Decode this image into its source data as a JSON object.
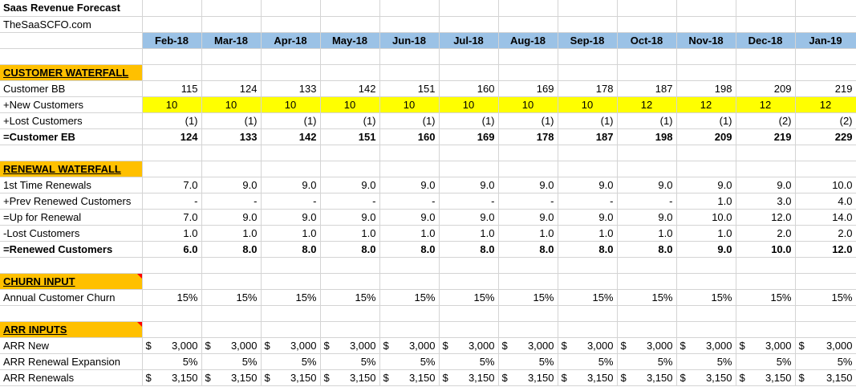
{
  "sheet": {
    "title": "Saas Revenue Forecast",
    "subtitle": "TheSaaSCFO.com",
    "months": [
      "Feb-18",
      "Mar-18",
      "Apr-18",
      "May-18",
      "Jun-18",
      "Jul-18",
      "Aug-18",
      "Sep-18",
      "Oct-18",
      "Nov-18",
      "Dec-18",
      "Jan-19"
    ]
  },
  "customer_waterfall": {
    "header": "CUSTOMER WATERFALL",
    "rows": [
      {
        "label": "Customer BB",
        "values": [
          "115",
          "124",
          "133",
          "142",
          "151",
          "160",
          "169",
          "178",
          "187",
          "198",
          "209",
          "219"
        ]
      },
      {
        "label": "+New Customers",
        "values": [
          "10",
          "10",
          "10",
          "10",
          "10",
          "10",
          "10",
          "10",
          "12",
          "12",
          "12",
          "12"
        ]
      },
      {
        "label": "+Lost Customers",
        "values": [
          "(1)",
          "(1)",
          "(1)",
          "(1)",
          "(1)",
          "(1)",
          "(1)",
          "(1)",
          "(1)",
          "(1)",
          "(2)",
          "(2)"
        ]
      },
      {
        "label": "=Customer EB",
        "values": [
          "124",
          "133",
          "142",
          "151",
          "160",
          "169",
          "178",
          "187",
          "198",
          "209",
          "219",
          "229"
        ]
      }
    ]
  },
  "renewal_waterfall": {
    "header": "RENEWAL WATERFALL",
    "rows": [
      {
        "label": "1st Time Renewals",
        "values": [
          "7.0",
          "9.0",
          "9.0",
          "9.0",
          "9.0",
          "9.0",
          "9.0",
          "9.0",
          "9.0",
          "9.0",
          "9.0",
          "10.0"
        ]
      },
      {
        "label": "+Prev Renewed Customers",
        "values": [
          "-",
          "-",
          "-",
          "-",
          "-",
          "-",
          "-",
          "-",
          "-",
          "1.0",
          "3.0",
          "4.0"
        ]
      },
      {
        "label": "=Up for Renewal",
        "values": [
          "7.0",
          "9.0",
          "9.0",
          "9.0",
          "9.0",
          "9.0",
          "9.0",
          "9.0",
          "9.0",
          "10.0",
          "12.0",
          "14.0"
        ]
      },
      {
        "label": "-Lost Customers",
        "values": [
          "1.0",
          "1.0",
          "1.0",
          "1.0",
          "1.0",
          "1.0",
          "1.0",
          "1.0",
          "1.0",
          "1.0",
          "2.0",
          "2.0"
        ]
      },
      {
        "label": "=Renewed Customers",
        "values": [
          "6.0",
          "8.0",
          "8.0",
          "8.0",
          "8.0",
          "8.0",
          "8.0",
          "8.0",
          "8.0",
          "9.0",
          "10.0",
          "12.0"
        ]
      }
    ]
  },
  "churn_input": {
    "header": "CHURN INPUT",
    "rows": [
      {
        "label": "Annual Customer Churn",
        "values": [
          "15%",
          "15%",
          "15%",
          "15%",
          "15%",
          "15%",
          "15%",
          "15%",
          "15%",
          "15%",
          "15%",
          "15%"
        ]
      }
    ]
  },
  "arr_inputs": {
    "header": "ARR INPUTS",
    "currency": "$",
    "rows": [
      {
        "label": "ARR New",
        "values": [
          "3,000",
          "3,000",
          "3,000",
          "3,000",
          "3,000",
          "3,000",
          "3,000",
          "3,000",
          "3,000",
          "3,000",
          "3,000",
          "3,000"
        ]
      },
      {
        "label": "ARR Renewal Expansion",
        "values": [
          "5%",
          "5%",
          "5%",
          "5%",
          "5%",
          "5%",
          "5%",
          "5%",
          "5%",
          "5%",
          "5%",
          "5%"
        ]
      },
      {
        "label": "ARR Renewals",
        "values": [
          "3,150",
          "3,150",
          "3,150",
          "3,150",
          "3,150",
          "3,150",
          "3,150",
          "3,150",
          "3,150",
          "3,150",
          "3,150",
          "3,150"
        ]
      }
    ]
  },
  "colors": {
    "header_fill": "#9bc2e6",
    "section_fill": "#ffc000",
    "input_fill": "#ffff00",
    "comment_marker": "#ff0000"
  }
}
